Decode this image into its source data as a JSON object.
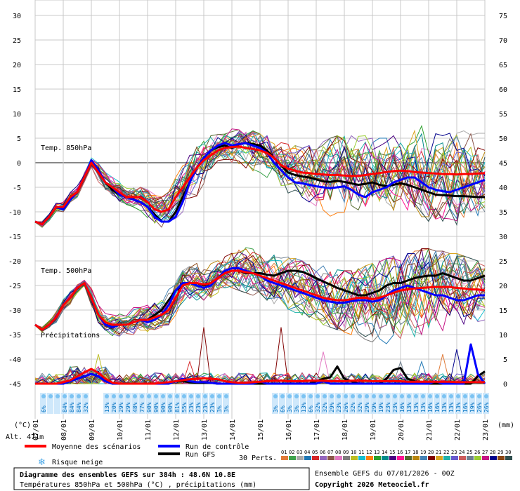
{
  "chart_data": {
    "type": "line",
    "title": "Diagramme des ensembles GEFS sur 384h : 48.6N 10.8E",
    "subtitle": "Températures 850hPa et 500hPa (°C) , précipitations (mm)",
    "run_info": "Ensemble GEFS du 07/01/2026 - 00Z",
    "copyright": "Copyright 2026 Meteociel.fr",
    "altitude_label": "Alt. 471m",
    "x_axis": {
      "ticks": [
        "07/01",
        "08/01",
        "09/01",
        "10/01",
        "11/01",
        "12/01",
        "13/01",
        "14/01",
        "15/01",
        "16/01",
        "17/01",
        "18/01",
        "19/01",
        "20/01",
        "21/01",
        "22/01",
        "23/01"
      ]
    },
    "left_axis": {
      "unit": "(°C)",
      "ticks": [
        "30",
        "25",
        "20",
        "15",
        "10",
        "5",
        "0",
        "-5",
        "-10",
        "-15",
        "-20",
        "-25",
        "-30",
        "-35",
        "-40",
        "-45"
      ]
    },
    "right_axis": {
      "unit": "(mm)",
      "ticks": [
        "75",
        "70",
        "65",
        "60",
        "55",
        "50",
        "45",
        "40",
        "35",
        "30",
        "25",
        "20",
        "15",
        "10",
        "5",
        "0"
      ]
    },
    "panel_labels": {
      "t850": "Temp. 850hPa",
      "t500": "Temp. 500hPa",
      "precip": "Précipitations"
    },
    "legend": {
      "mean": "Moyenne des scénarios",
      "control": "Run de contrôle",
      "gfs": "Run GFS",
      "snow": "Risque neige",
      "perts": "30 Perts.",
      "member_ids": [
        "01",
        "02",
        "03",
        "04",
        "05",
        "06",
        "07",
        "08",
        "09",
        "10",
        "11",
        "12",
        "13",
        "14",
        "15",
        "16",
        "17",
        "18",
        "19",
        "20",
        "21",
        "22",
        "23",
        "24",
        "25",
        "26",
        "27",
        "28",
        "29",
        "30"
      ]
    },
    "member_colors": [
      "#e07b39",
      "#3fa34d",
      "#a8a8a8",
      "#1f77b4",
      "#d62728",
      "#9467bd",
      "#8c564b",
      "#e377c2",
      "#7f7f7f",
      "#bcbd22",
      "#17becf",
      "#ff7f0e",
      "#2ca02c",
      "#008b8b",
      "#4b0082",
      "#ff1493",
      "#556b2f",
      "#b8860b",
      "#4682b4",
      "#800000",
      "#daa520",
      "#20b2aa",
      "#6a5acd",
      "#cd5c5c",
      "#708090",
      "#9acd32",
      "#c71585",
      "#00008b",
      "#8b4513",
      "#2f4f4f"
    ],
    "series": [
      {
        "name": "Moyenne des scénarios",
        "panel": "t850",
        "color": "#ff0000",
        "values": [
          -12,
          -12.5,
          -11,
          -9,
          -9,
          -7,
          -6,
          -3,
          0,
          -2,
          -4,
          -5,
          -6,
          -7,
          -7,
          -7,
          -8,
          -9.5,
          -10,
          -9.5,
          -7,
          -5,
          -3,
          -1,
          0.5,
          1.5,
          2.5,
          3,
          3.2,
          3.3,
          3,
          2.8,
          2.5,
          2,
          1,
          -0.5,
          -1.2,
          -1.6,
          -2,
          -2.1,
          -2.3,
          -2.4,
          -2.5,
          -2.5,
          -2.6,
          -2.7,
          -2.7,
          -2.5,
          -2.3,
          -2.1,
          -1.9,
          -1.7,
          -1.6,
          -1.7,
          -1.9,
          -2,
          -2.1,
          -2.2,
          -2.3,
          -2.3,
          -2.4,
          -2.3,
          -2.3,
          -2.2,
          -2.1
        ]
      },
      {
        "name": "Run de contrôle",
        "panel": "t850",
        "color": "#0000ff",
        "values": [
          -12,
          -12.5,
          -11,
          -9,
          -9.5,
          -7.5,
          -6,
          -3,
          0.5,
          -1.5,
          -4,
          -5,
          -6.5,
          -7,
          -7.5,
          -8,
          -9,
          -11,
          -12,
          -12,
          -11,
          -8,
          -4,
          -1,
          1,
          2.5,
          3.5,
          4,
          3.5,
          3.8,
          4,
          3.5,
          3,
          2,
          0,
          -1.5,
          -3,
          -4,
          -4.2,
          -4.5,
          -4.8,
          -5,
          -5.2,
          -5,
          -4.8,
          -5.5,
          -6.5,
          -7,
          -6,
          -5.5,
          -5,
          -4,
          -3.5,
          -3,
          -3,
          -4,
          -5,
          -5.5,
          -5.8,
          -6,
          -5.5,
          -5,
          -4.5,
          -4,
          -3.5
        ]
      },
      {
        "name": "Run GFS",
        "panel": "t850",
        "color": "#000000",
        "values": [
          -12,
          -12.5,
          -11,
          -9,
          -9,
          -7,
          -6,
          -3,
          0,
          -2,
          -4,
          -5.5,
          -6.5,
          -7,
          -7.5,
          -8,
          -9,
          -10.5,
          -12,
          -12,
          -10,
          -7,
          -4,
          -1,
          1,
          2.5,
          3.2,
          3.5,
          3,
          3.8,
          4,
          3.8,
          3.5,
          2.5,
          1,
          -0.5,
          -2,
          -2.5,
          -2.8,
          -3,
          -3.4,
          -3.8,
          -3.9,
          -3.7,
          -3.9,
          -4.2,
          -4.5,
          -4.3,
          -4,
          -4.5,
          -4.8,
          -4.5,
          -4.2,
          -4.5,
          -5,
          -5.5,
          -6,
          -6.5,
          -6.6,
          -6.7,
          -6.8,
          -6.8,
          -6.9,
          -7,
          -7
        ]
      },
      {
        "name": "Moyenne des scénarios",
        "panel": "t500",
        "color": "#ff0000",
        "values": [
          -33,
          -34,
          -33,
          -31.5,
          -29,
          -27.5,
          -25.5,
          -24.5,
          -27.5,
          -31,
          -32.5,
          -33,
          -33,
          -33,
          -32.5,
          -32,
          -32,
          -31.5,
          -31,
          -30,
          -27.5,
          -25,
          -24.5,
          -24.5,
          -24.8,
          -24.5,
          -23.5,
          -22.5,
          -22,
          -22,
          -22.3,
          -22.5,
          -23,
          -23.5,
          -24,
          -24.5,
          -25,
          -25.5,
          -26,
          -26.5,
          -27,
          -27.5,
          -27.8,
          -28,
          -28,
          -27.8,
          -27.5,
          -27.5,
          -27.8,
          -27.5,
          -27,
          -26.5,
          -26,
          -25.8,
          -25.6,
          -25.5,
          -25.4,
          -25.3,
          -25.3,
          -25.3,
          -25.5,
          -25.6,
          -25.8,
          -25.8,
          -26
        ]
      },
      {
        "name": "Run de contrôle",
        "panel": "t500",
        "color": "#0000ff",
        "values": [
          -33,
          -34,
          -33,
          -31.5,
          -29,
          -27.5,
          -25.5,
          -24.5,
          -27.5,
          -31,
          -33,
          -33.5,
          -33,
          -33,
          -32.5,
          -32,
          -32.5,
          -32,
          -31,
          -29,
          -26,
          -24.5,
          -24.5,
          -25,
          -25.5,
          -25,
          -23.5,
          -22,
          -21.5,
          -21.5,
          -22,
          -22.5,
          -23,
          -24,
          -24.5,
          -25,
          -25.5,
          -26,
          -26.5,
          -27,
          -27.5,
          -28,
          -28.3,
          -28.5,
          -28.5,
          -28.2,
          -28,
          -28,
          -28.3,
          -28,
          -27,
          -26,
          -25.5,
          -25,
          -25.5,
          -26,
          -26.5,
          -27,
          -27,
          -27.5,
          -28,
          -28,
          -27.5,
          -27,
          -27
        ]
      },
      {
        "name": "Run GFS",
        "panel": "t500",
        "color": "#000000",
        "values": [
          -33,
          -34,
          -33,
          -31.5,
          -29,
          -27.5,
          -25.5,
          -24.5,
          -27.5,
          -31,
          -33,
          -33.5,
          -33,
          -33,
          -32.5,
          -32,
          -32,
          -31,
          -30,
          -28,
          -26,
          -25,
          -24.5,
          -24.5,
          -25,
          -24.5,
          -23.5,
          -22.5,
          -22,
          -22,
          -22.5,
          -22.5,
          -22.5,
          -22.8,
          -23,
          -22.5,
          -22,
          -22,
          -22.2,
          -22.8,
          -23.5,
          -24.2,
          -24.8,
          -25.5,
          -26,
          -26.5,
          -27,
          -27,
          -26.5,
          -26,
          -25,
          -24.5,
          -24.5,
          -24,
          -23.5,
          -23.2,
          -23,
          -23,
          -22.5,
          -23,
          -23.5,
          -24,
          -24,
          -23.5,
          -23
        ]
      },
      {
        "name": "Moyenne des scénarios",
        "panel": "precip",
        "color": "#ff0000",
        "values": [
          0,
          0,
          0,
          0,
          0.3,
          0.7,
          1.5,
          2.3,
          3,
          2.2,
          1,
          0.2,
          0,
          0,
          0,
          0,
          0,
          0,
          0.2,
          0.3,
          0.5,
          0.7,
          0.9,
          1,
          1.1,
          1,
          0.9,
          0.5,
          0.3,
          0.2,
          0.2,
          0.3,
          0.4,
          0.5,
          0.6,
          0.6,
          0.5,
          0.5,
          0.5,
          0.6,
          0.6,
          0.6,
          0.5,
          0.5,
          0.5,
          0.6,
          0.6,
          0.6,
          0.5,
          0.5,
          0.5,
          0.5,
          0.5,
          0.4,
          0.4,
          0.4,
          0.4,
          0.4,
          0.4,
          0.4,
          0.3,
          0.3,
          0.3,
          0.3,
          0.3
        ]
      },
      {
        "name": "Run de contrôle",
        "panel": "precip",
        "color": "#0000ff",
        "values": [
          0,
          0,
          0,
          0,
          0,
          0.5,
          1,
          1.5,
          2,
          1.5,
          0.5,
          0,
          0,
          0,
          0,
          0,
          0,
          0,
          0,
          0,
          0.5,
          1,
          0.5,
          0.3,
          0.3,
          0.2,
          0,
          0,
          0,
          0,
          0,
          0,
          0.5,
          0,
          0,
          0,
          0,
          0,
          0,
          0,
          0,
          0.5,
          0,
          0,
          0,
          0,
          0,
          0,
          0,
          0,
          0,
          0,
          0,
          0,
          0,
          0,
          0,
          0.5,
          0,
          0,
          0,
          0,
          8,
          2,
          0
        ]
      },
      {
        "name": "Run GFS",
        "panel": "precip",
        "color": "#000000",
        "values": [
          0,
          0,
          0,
          0,
          0,
          0.5,
          1,
          1.5,
          2,
          1.5,
          0.5,
          0,
          0,
          0,
          0,
          0,
          0,
          0,
          0,
          0,
          0.5,
          0.5,
          0.3,
          0.2,
          0.2,
          0.2,
          0,
          0,
          0,
          0,
          0,
          0,
          0,
          0,
          0,
          0,
          0,
          0,
          0,
          0,
          0.5,
          1,
          1.3,
          3.5,
          1,
          0.5,
          0,
          0,
          0,
          0,
          1,
          2.8,
          3.2,
          1,
          0.5,
          0,
          0,
          0,
          0,
          0,
          0,
          0,
          0,
          1.5,
          2.5
        ]
      }
    ],
    "ensemble_envelope": {
      "t850": {
        "upper": [
          -12,
          -12,
          -10.5,
          -8,
          -8,
          -6,
          -4.5,
          -2,
          1,
          0,
          -2,
          -3,
          -3.5,
          -4.5,
          -5,
          -5,
          -5.5,
          -6.5,
          -7,
          -6,
          -3,
          0,
          2,
          4,
          5.5,
          6,
          6.5,
          6.5,
          7,
          7,
          6.5,
          6.5,
          6,
          5.5,
          5,
          4.5,
          4,
          3.5,
          3,
          3.5,
          4,
          4.5,
          5,
          5.5,
          5.5,
          5.5,
          5.5,
          5.5,
          5,
          5,
          5,
          5.5,
          5.5,
          6,
          6.5,
          7.5,
          7,
          6,
          5.5,
          6,
          6,
          6.5,
          6,
          6,
          6
        ],
        "lower": [
          -12.5,
          -13.5,
          -12,
          -10,
          -10,
          -8,
          -7,
          -4.5,
          -1,
          -4,
          -6,
          -7,
          -8,
          -8.5,
          -9,
          -10,
          -12,
          -13.5,
          -14,
          -13.5,
          -12,
          -10,
          -8.5,
          -7,
          -5,
          -3,
          -1,
          0,
          -0.5,
          -1,
          -1.5,
          -2,
          -2,
          -3,
          -4,
          -5,
          -6.5,
          -7,
          -7.5,
          -8,
          -9,
          -10,
          -11,
          -11,
          -12,
          -12.5,
          -12,
          -11.5,
          -11,
          -10,
          -10,
          -10,
          -10,
          -10,
          -10.5,
          -11,
          -12,
          -12.5,
          -12.8,
          -13,
          -13,
          -12.5,
          -12,
          -11,
          -10
        ]
      },
      "t500": {
        "upper": [
          -33,
          -33.5,
          -32,
          -30,
          -27.5,
          -26,
          -24,
          -23.5,
          -25.5,
          -29,
          -30.5,
          -31,
          -30.5,
          -30,
          -29.5,
          -29.5,
          -29,
          -28.5,
          -27.5,
          -25.5,
          -23,
          -22,
          -21,
          -20.5,
          -19.5,
          -19,
          -18.5,
          -18,
          -17.5,
          -17,
          -17,
          -17.5,
          -18,
          -18,
          -18.5,
          -19,
          -19,
          -19.5,
          -20,
          -20.5,
          -21,
          -21,
          -21.5,
          -21.5,
          -22,
          -22,
          -21.5,
          -21,
          -20.5,
          -20,
          -19.5,
          -19,
          -18.5,
          -18.5,
          -18,
          -17.5,
          -17.5,
          -18,
          -18,
          -18.5,
          -18.5,
          -19,
          -19.5,
          -20,
          -20.5
        ],
        "lower": [
          -33.5,
          -34.5,
          -33.5,
          -32.5,
          -30,
          -29,
          -26.5,
          -25,
          -29,
          -33,
          -35,
          -36,
          -35.5,
          -35,
          -35,
          -35,
          -34.5,
          -34,
          -33.5,
          -33,
          -31,
          -29,
          -28.5,
          -28,
          -28,
          -27.5,
          -26.5,
          -25.5,
          -25.5,
          -26,
          -26.5,
          -27,
          -27.5,
          -28,
          -29,
          -29.5,
          -30,
          -30.5,
          -31,
          -31.5,
          -32,
          -33,
          -33.5,
          -34,
          -34.5,
          -35,
          -35.5,
          -36,
          -36.5,
          -37,
          -37.5,
          -38,
          -38,
          -38,
          -37.5,
          -37,
          -36.5,
          -35.5,
          -35,
          -34.5,
          -34,
          -33.5,
          -33,
          -32.5,
          -32
        ]
      }
    },
    "precip_peaks_mm": [
      {
        "x": 24,
        "value": 11.5,
        "member": 20
      },
      {
        "x": 22,
        "value": 4.5,
        "member": 5
      },
      {
        "x": 35,
        "value": 11.5,
        "member": 20
      },
      {
        "x": 41,
        "value": 6.5,
        "member": 8
      },
      {
        "x": 60,
        "value": 7,
        "member": 28
      },
      {
        "x": 55,
        "value": 4.5,
        "member": 4
      },
      {
        "x": 58,
        "value": 6,
        "member": 1
      },
      {
        "x": 9,
        "value": 6,
        "member": 10
      },
      {
        "x": 52,
        "value": 4.5,
        "member": 25
      }
    ],
    "snow_risk": {
      "first": [
        "6%",
        "",
        "",
        "84%",
        "84%",
        "84%",
        "32%"
      ],
      "second": [
        "13%",
        "20%",
        "29%",
        "29%",
        "48%",
        "77%",
        "90%",
        "90%",
        "90%",
        "90%",
        "81%",
        "55%",
        "23%",
        "23%",
        "23%",
        "23%",
        "3%",
        "3%"
      ],
      "third": [
        "3%",
        "6%",
        "3%",
        "3%",
        "13%",
        "6%",
        "32%",
        "32%",
        "29%",
        "23%",
        "26%",
        "32%",
        "32%",
        "29%",
        "29%",
        "19%",
        "23%",
        "23%",
        "16%",
        "13%",
        "13%",
        "13%",
        "16%",
        "16%",
        "13%",
        "13%",
        "13%",
        "16%",
        "19%",
        "26%",
        "26%"
      ]
    },
    "x_steps_per_day": 4,
    "t_ylim": [
      -45,
      30
    ],
    "precip_ylim": [
      0,
      75
    ],
    "grid": true
  }
}
